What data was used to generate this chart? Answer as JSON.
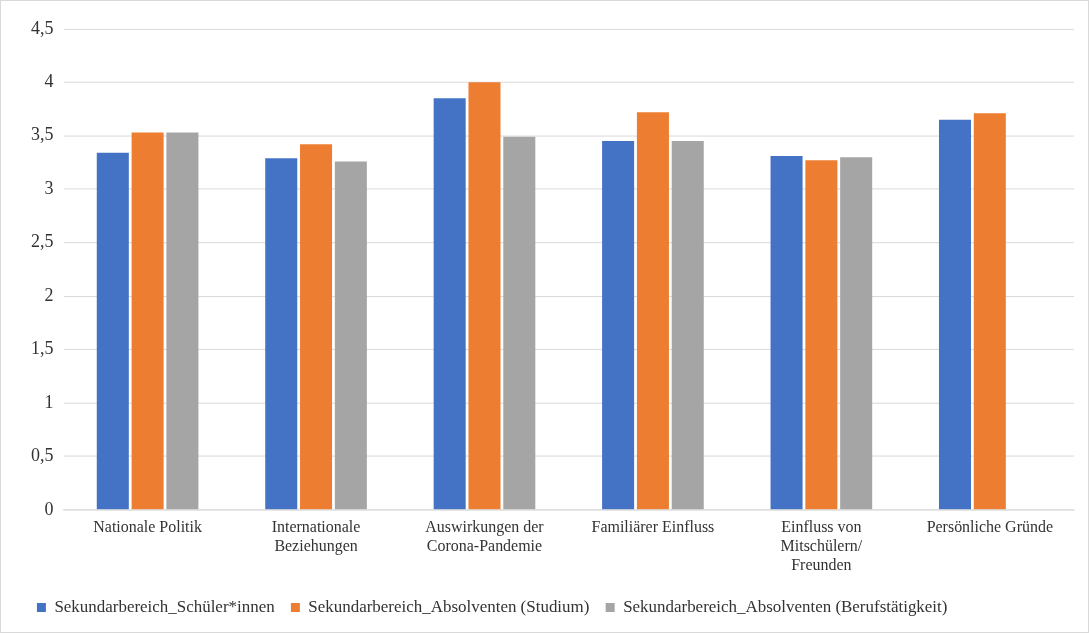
{
  "chart_data": {
    "type": "bar",
    "categories": [
      "Nationale Politik",
      "Internationale Beziehungen",
      "Auswirkungen der Corona-Pandemie",
      "Familiärer Einfluss",
      "Einfluss von Mitschülern/ Freunden",
      "Persönliche Gründe"
    ],
    "series": [
      {
        "name": "Sekundarbereich_Schüler*innen",
        "color": "#4472c4",
        "values": [
          3.34,
          3.29,
          3.85,
          3.45,
          3.31,
          3.65
        ]
      },
      {
        "name": "Sekundarbereich_Absolventen (Studium)",
        "color": "#ed7d31",
        "values": [
          3.53,
          3.42,
          4.0,
          3.72,
          3.27,
          3.71
        ]
      },
      {
        "name": "Sekundarbereich_Absolventen (Berufstätigkeit)",
        "color": "#a5a5a5",
        "values": [
          3.53,
          3.26,
          3.49,
          3.45,
          3.3,
          null
        ]
      }
    ],
    "ylim": [
      0,
      4.5
    ],
    "yticks": [
      0,
      {
        "value": 0.5,
        "label": "0,5"
      },
      1,
      {
        "value": 1.5,
        "label": "1,5"
      },
      2,
      {
        "value": 2.5,
        "label": "2,5"
      },
      3,
      {
        "value": 3.5,
        "label": "3,5"
      },
      4,
      {
        "value": 4.5,
        "label": "4,5"
      }
    ],
    "grid": "y",
    "legend": "bottom"
  }
}
